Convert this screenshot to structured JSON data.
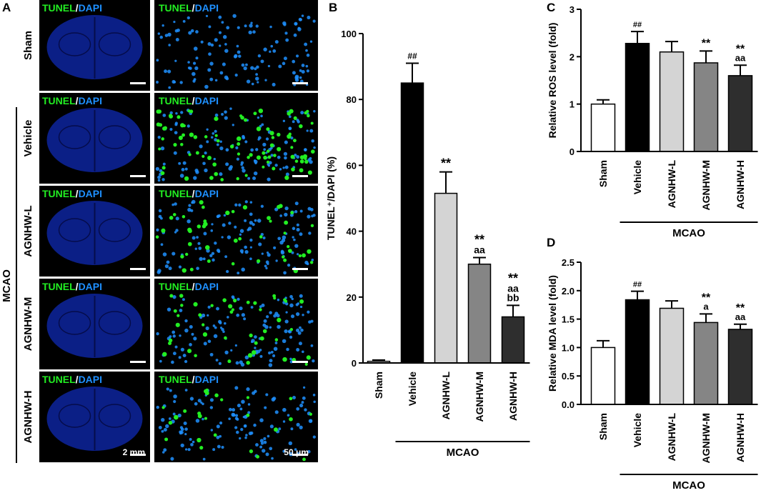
{
  "colors": {
    "tunel_green": "#22ee22",
    "dapi_blue": "#1e90ff",
    "tissue_blue": "#0b1f86",
    "tissue_dark": "#050c4a",
    "micro_bg": "#000000",
    "separator": "#ffffff",
    "bar_sham": "#ffffff",
    "bar_vehicle": "#000000",
    "bar_low": "#d4d4d4",
    "bar_mid": "#858585",
    "bar_high": "#2e2e2e"
  },
  "panel_a": {
    "letter": "A",
    "label_tunel": "TUNEL",
    "label_slash": "/",
    "label_dapi": "DAPI",
    "group_label": "MCAO",
    "rows": [
      {
        "label": "Sham",
        "signal": "none"
      },
      {
        "label": "Vehicle",
        "signal": "high"
      },
      {
        "label": "AGNHW-L",
        "signal": "medium"
      },
      {
        "label": "AGNHW-M",
        "signal": "medium"
      },
      {
        "label": "AGNHW-H",
        "signal": "low"
      }
    ],
    "scale_bar_low": "2 mm",
    "scale_bar_high": "50 μm"
  },
  "chart_data": [
    {
      "panel": "B",
      "type": "bar",
      "ylabel": "TUNEL⁺/DAPI (%)",
      "ylim": [
        0,
        100
      ],
      "yticks": [
        "0",
        "20",
        "40",
        "60",
        "80",
        "100"
      ],
      "categories": [
        "Sham",
        "Vehicle",
        "AGNHW-L",
        "AGNHW-M",
        "AGNHW-H"
      ],
      "values": [
        0.5,
        85,
        51.5,
        30,
        14
      ],
      "errors": [
        0.4,
        6,
        6.5,
        2,
        3.5
      ],
      "annotations": [
        [],
        [
          "##"
        ],
        [
          "**"
        ],
        [
          "**",
          "aa"
        ],
        [
          "**",
          "aa",
          "bb"
        ]
      ],
      "group_label": "MCAO"
    },
    {
      "panel": "C",
      "type": "bar",
      "ylabel": "Relative ROS level (fold)",
      "ylim": [
        0,
        3
      ],
      "yticks": [
        "0",
        "1",
        "2",
        "3"
      ],
      "categories": [
        "Sham",
        "Vehicle",
        "AGNHW-L",
        "AGNHW-M",
        "AGNHW-H"
      ],
      "values": [
        1.0,
        2.28,
        2.1,
        1.87,
        1.6
      ],
      "errors": [
        0.09,
        0.25,
        0.22,
        0.25,
        0.22
      ],
      "annotations": [
        [],
        [
          "##"
        ],
        [],
        [
          "**"
        ],
        [
          "**",
          "aa"
        ]
      ],
      "group_label": "MCAO"
    },
    {
      "panel": "D",
      "type": "bar",
      "ylabel": "Relative MDA level (fold)",
      "ylim": [
        0,
        2.5
      ],
      "yticks": [
        "0.0",
        "0.5",
        "1.0",
        "1.5",
        "2.0",
        "2.5"
      ],
      "categories": [
        "Sham",
        "Vehicle",
        "AGNHW-L",
        "AGNHW-M",
        "AGNHW-H"
      ],
      "values": [
        1.0,
        1.84,
        1.69,
        1.44,
        1.32
      ],
      "errors": [
        0.12,
        0.15,
        0.13,
        0.15,
        0.09
      ],
      "annotations": [
        [],
        [
          "##"
        ],
        [],
        [
          "**",
          "a"
        ],
        [
          "**",
          "aa"
        ]
      ],
      "group_label": "MCAO"
    }
  ]
}
